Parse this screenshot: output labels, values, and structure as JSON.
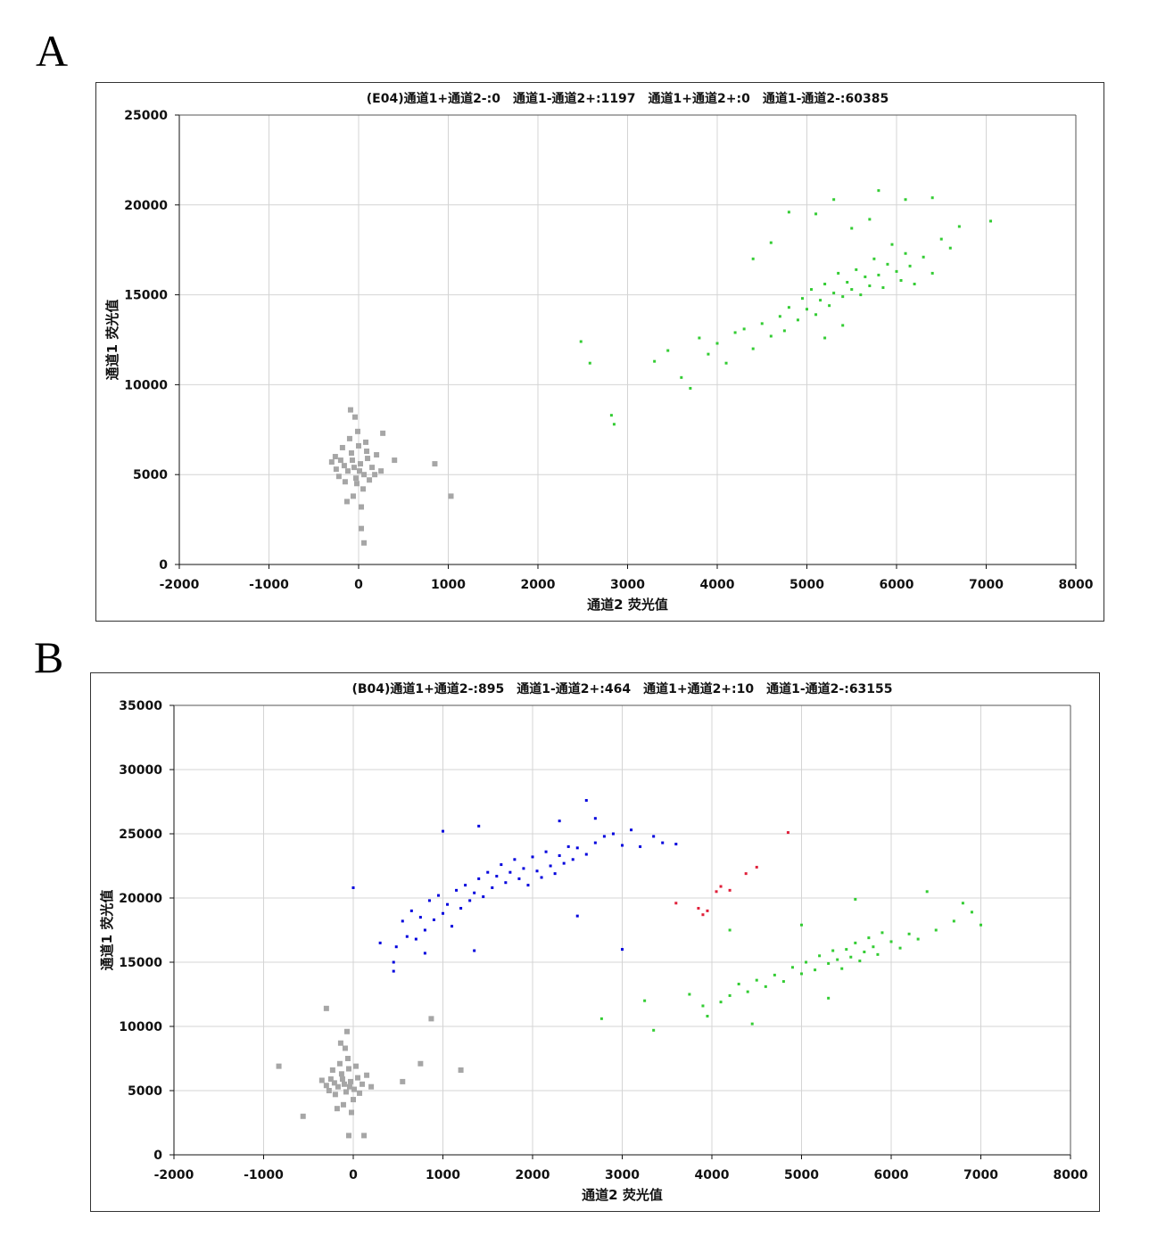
{
  "panels": [
    "A",
    "B"
  ],
  "chart_data": [
    {
      "type": "scatter",
      "title": "(E04)通道1+通道2-:0　通道1-通道2+:1197　通道1+通道2+:0　通道1-通道2-:60385",
      "xlabel": "通道2  荧光值",
      "ylabel": "通道1  荧光值",
      "xlim": [
        -2000,
        8000
      ],
      "ylim": [
        0,
        25000
      ],
      "xticks": [
        -2000,
        -1000,
        0,
        1000,
        2000,
        3000,
        4000,
        5000,
        6000,
        7000,
        8000
      ],
      "yticks": [
        0,
        5000,
        10000,
        15000,
        20000,
        25000
      ],
      "grid": true,
      "series": [
        {
          "color": "#a6a6a6",
          "points": [
            [
              -50,
              5400
            ],
            [
              -120,
              5200
            ],
            [
              20,
              5600
            ],
            [
              -200,
              5800
            ],
            [
              60,
              5000
            ],
            [
              -80,
              6200
            ],
            [
              -150,
              4600
            ],
            [
              100,
              5900
            ],
            [
              -30,
              4800
            ],
            [
              0,
              6600
            ],
            [
              -250,
              5300
            ],
            [
              150,
              5400
            ],
            [
              -100,
              7000
            ],
            [
              50,
              4200
            ],
            [
              -180,
              6500
            ],
            [
              80,
              6800
            ],
            [
              -60,
              3800
            ],
            [
              200,
              6100
            ],
            [
              -220,
              4900
            ],
            [
              120,
              4700
            ],
            [
              -10,
              7400
            ],
            [
              -300,
              5700
            ],
            [
              250,
              5200
            ],
            [
              -130,
              3500
            ],
            [
              30,
              3200
            ],
            [
              -90,
              8600
            ],
            [
              -40,
              8200
            ],
            [
              400,
              5800
            ],
            [
              270,
              7300
            ],
            [
              850,
              5600
            ],
            [
              1030,
              3800
            ],
            [
              30,
              2000
            ],
            [
              60,
              1200
            ],
            [
              -70,
              5800
            ],
            [
              10,
              5200
            ],
            [
              -160,
              5500
            ],
            [
              90,
              6300
            ],
            [
              -20,
              4500
            ],
            [
              180,
              5000
            ],
            [
              -260,
              6000
            ]
          ]
        },
        {
          "color": "#33cc33",
          "points": [
            [
              3300,
              11300
            ],
            [
              3450,
              11900
            ],
            [
              3600,
              10400
            ],
            [
              3700,
              9800
            ],
            [
              3800,
              12600
            ],
            [
              3900,
              11700
            ],
            [
              4000,
              12300
            ],
            [
              4100,
              11200
            ],
            [
              4200,
              12900
            ],
            [
              4300,
              13100
            ],
            [
              4400,
              12000
            ],
            [
              4500,
              13400
            ],
            [
              4600,
              12700
            ],
            [
              4700,
              13800
            ],
            [
              4750,
              13000
            ],
            [
              4800,
              14300
            ],
            [
              4900,
              13600
            ],
            [
              4950,
              14800
            ],
            [
              5000,
              14200
            ],
            [
              5050,
              15300
            ],
            [
              5100,
              13900
            ],
            [
              5150,
              14700
            ],
            [
              5200,
              15600
            ],
            [
              5250,
              14400
            ],
            [
              5300,
              15100
            ],
            [
              5350,
              16200
            ],
            [
              5400,
              14900
            ],
            [
              5450,
              15700
            ],
            [
              5500,
              15300
            ],
            [
              5550,
              16400
            ],
            [
              5600,
              15000
            ],
            [
              5650,
              16000
            ],
            [
              5700,
              15500
            ],
            [
              5750,
              17000
            ],
            [
              5800,
              16100
            ],
            [
              5850,
              15400
            ],
            [
              5900,
              16700
            ],
            [
              5950,
              17800
            ],
            [
              6000,
              16300
            ],
            [
              6050,
              15800
            ],
            [
              6100,
              17300
            ],
            [
              6150,
              16600
            ],
            [
              6200,
              15600
            ],
            [
              6300,
              17100
            ],
            [
              6400,
              16200
            ],
            [
              6500,
              18100
            ],
            [
              6600,
              17600
            ],
            [
              6700,
              18800
            ],
            [
              5100,
              19500
            ],
            [
              5300,
              20300
            ],
            [
              5800,
              20800
            ],
            [
              6100,
              20300
            ],
            [
              6400,
              20400
            ],
            [
              4800,
              19600
            ],
            [
              4400,
              17000
            ],
            [
              4600,
              17900
            ],
            [
              5500,
              18700
            ],
            [
              5700,
              19200
            ],
            [
              5200,
              12600
            ],
            [
              5400,
              13300
            ],
            [
              2480,
              12400
            ],
            [
              2580,
              11200
            ],
            [
              2820,
              8300
            ],
            [
              2850,
              7800
            ],
            [
              7050,
              19100
            ]
          ]
        }
      ]
    },
    {
      "type": "scatter",
      "title": "(B04)通道1+通道2-:895　通道1-通道2+:464　通道1+通道2+:10　通道1-通道2-:63155",
      "xlabel": "通道2  荧光值",
      "ylabel": "通道1  荧光值",
      "xlim": [
        -2000,
        8000
      ],
      "ylim": [
        0,
        35000
      ],
      "xticks": [
        -2000,
        -1000,
        0,
        1000,
        2000,
        3000,
        4000,
        5000,
        6000,
        7000,
        8000
      ],
      "yticks": [
        0,
        5000,
        10000,
        15000,
        20000,
        25000,
        30000,
        35000
      ],
      "grid": true,
      "series": [
        {
          "color": "#a6a6a6",
          "points": [
            [
              -100,
              5500
            ],
            [
              -170,
              5300
            ],
            [
              -30,
              5700
            ],
            [
              -250,
              5900
            ],
            [
              10,
              5100
            ],
            [
              -130,
              6300
            ],
            [
              -200,
              4700
            ],
            [
              50,
              6000
            ],
            [
              -80,
              4900
            ],
            [
              -50,
              6700
            ],
            [
              -300,
              5400
            ],
            [
              100,
              5500
            ],
            [
              -150,
              7100
            ],
            [
              0,
              4300
            ],
            [
              -230,
              6600
            ],
            [
              30,
              6900
            ],
            [
              -110,
              3900
            ],
            [
              150,
              6200
            ],
            [
              -270,
              5000
            ],
            [
              70,
              4800
            ],
            [
              -60,
              7500
            ],
            [
              -350,
              5800
            ],
            [
              200,
              5300
            ],
            [
              -180,
              3600
            ],
            [
              -20,
              3300
            ],
            [
              -140,
              8700
            ],
            [
              -90,
              8300
            ],
            [
              -70,
              9600
            ],
            [
              -300,
              11400
            ],
            [
              -830,
              6900
            ],
            [
              -560,
              3000
            ],
            [
              750,
              7100
            ],
            [
              870,
              10600
            ],
            [
              1200,
              6600
            ],
            [
              550,
              5700
            ],
            [
              -50,
              1500
            ],
            [
              120,
              1500
            ],
            [
              -120,
              5900
            ],
            [
              -40,
              5300
            ],
            [
              -210,
              5600
            ]
          ]
        },
        {
          "color": "#0000dd",
          "points": [
            [
              300,
              16500
            ],
            [
              450,
              15000
            ],
            [
              450,
              14300
            ],
            [
              480,
              16200
            ],
            [
              550,
              18200
            ],
            [
              600,
              17000
            ],
            [
              650,
              19000
            ],
            [
              700,
              16800
            ],
            [
              750,
              18500
            ],
            [
              800,
              17500
            ],
            [
              850,
              19800
            ],
            [
              900,
              18300
            ],
            [
              950,
              20200
            ],
            [
              1000,
              18800
            ],
            [
              1050,
              19500
            ],
            [
              1100,
              17800
            ],
            [
              1150,
              20600
            ],
            [
              1200,
              19200
            ],
            [
              1250,
              21000
            ],
            [
              1300,
              19800
            ],
            [
              1350,
              20400
            ],
            [
              1400,
              21500
            ],
            [
              1450,
              20100
            ],
            [
              1500,
              22000
            ],
            [
              1550,
              20800
            ],
            [
              1600,
              21700
            ],
            [
              1650,
              22600
            ],
            [
              1700,
              21200
            ],
            [
              1750,
              22000
            ],
            [
              1800,
              23000
            ],
            [
              1850,
              21500
            ],
            [
              1900,
              22300
            ],
            [
              1950,
              21000
            ],
            [
              2000,
              23200
            ],
            [
              2050,
              22100
            ],
            [
              2100,
              21600
            ],
            [
              2150,
              23600
            ],
            [
              2200,
              22500
            ],
            [
              2250,
              21900
            ],
            [
              2300,
              23300
            ],
            [
              2350,
              22700
            ],
            [
              2400,
              24000
            ],
            [
              2450,
              23000
            ],
            [
              2500,
              23900
            ],
            [
              2600,
              23400
            ],
            [
              2700,
              24300
            ],
            [
              2800,
              24800
            ],
            [
              2900,
              25000
            ],
            [
              3000,
              24100
            ],
            [
              3100,
              25300
            ],
            [
              3200,
              24000
            ],
            [
              3350,
              24800
            ],
            [
              3450,
              24300
            ],
            [
              3600,
              24200
            ],
            [
              0,
              20800
            ],
            [
              1000,
              25200
            ],
            [
              1400,
              25600
            ],
            [
              2300,
              26000
            ],
            [
              2600,
              27600
            ],
            [
              2700,
              26200
            ],
            [
              2500,
              18600
            ],
            [
              3000,
              16000
            ],
            [
              1350,
              15900
            ],
            [
              800,
              15700
            ]
          ]
        },
        {
          "color": "#e0203a",
          "points": [
            [
              3600,
              19600
            ],
            [
              3850,
              19200
            ],
            [
              3900,
              18700
            ],
            [
              3950,
              19000
            ],
            [
              4050,
              20500
            ],
            [
              4100,
              20900
            ],
            [
              4200,
              20600
            ],
            [
              4380,
              21900
            ],
            [
              4500,
              22400
            ],
            [
              4850,
              25100
            ]
          ]
        },
        {
          "color": "#33cc33",
          "points": [
            [
              3750,
              12500
            ],
            [
              3900,
              11600
            ],
            [
              3950,
              10800
            ],
            [
              4100,
              11900
            ],
            [
              4200,
              12400
            ],
            [
              4300,
              13300
            ],
            [
              4400,
              12700
            ],
            [
              4500,
              13600
            ],
            [
              4600,
              13100
            ],
            [
              4700,
              14000
            ],
            [
              4800,
              13500
            ],
            [
              4900,
              14600
            ],
            [
              5000,
              14100
            ],
            [
              5050,
              15000
            ],
            [
              5150,
              14400
            ],
            [
              5200,
              15500
            ],
            [
              5300,
              14900
            ],
            [
              5350,
              15900
            ],
            [
              5400,
              15200
            ],
            [
              5450,
              14500
            ],
            [
              5500,
              16000
            ],
            [
              5550,
              15400
            ],
            [
              5600,
              16500
            ],
            [
              5650,
              15100
            ],
            [
              5700,
              15800
            ],
            [
              5750,
              16900
            ],
            [
              5800,
              16200
            ],
            [
              5850,
              15600
            ],
            [
              5900,
              17300
            ],
            [
              6000,
              16600
            ],
            [
              6100,
              16100
            ],
            [
              6200,
              17200
            ],
            [
              6300,
              16800
            ],
            [
              6500,
              17500
            ],
            [
              6700,
              18200
            ],
            [
              6800,
              19600
            ],
            [
              6900,
              18900
            ],
            [
              7000,
              17900
            ],
            [
              4200,
              17500
            ],
            [
              5000,
              17900
            ],
            [
              5600,
              19900
            ],
            [
              6400,
              20500
            ],
            [
              2770,
              10600
            ],
            [
              3250,
              12000
            ],
            [
              3350,
              9700
            ],
            [
              4450,
              10200
            ],
            [
              5300,
              12200
            ]
          ]
        }
      ]
    }
  ]
}
